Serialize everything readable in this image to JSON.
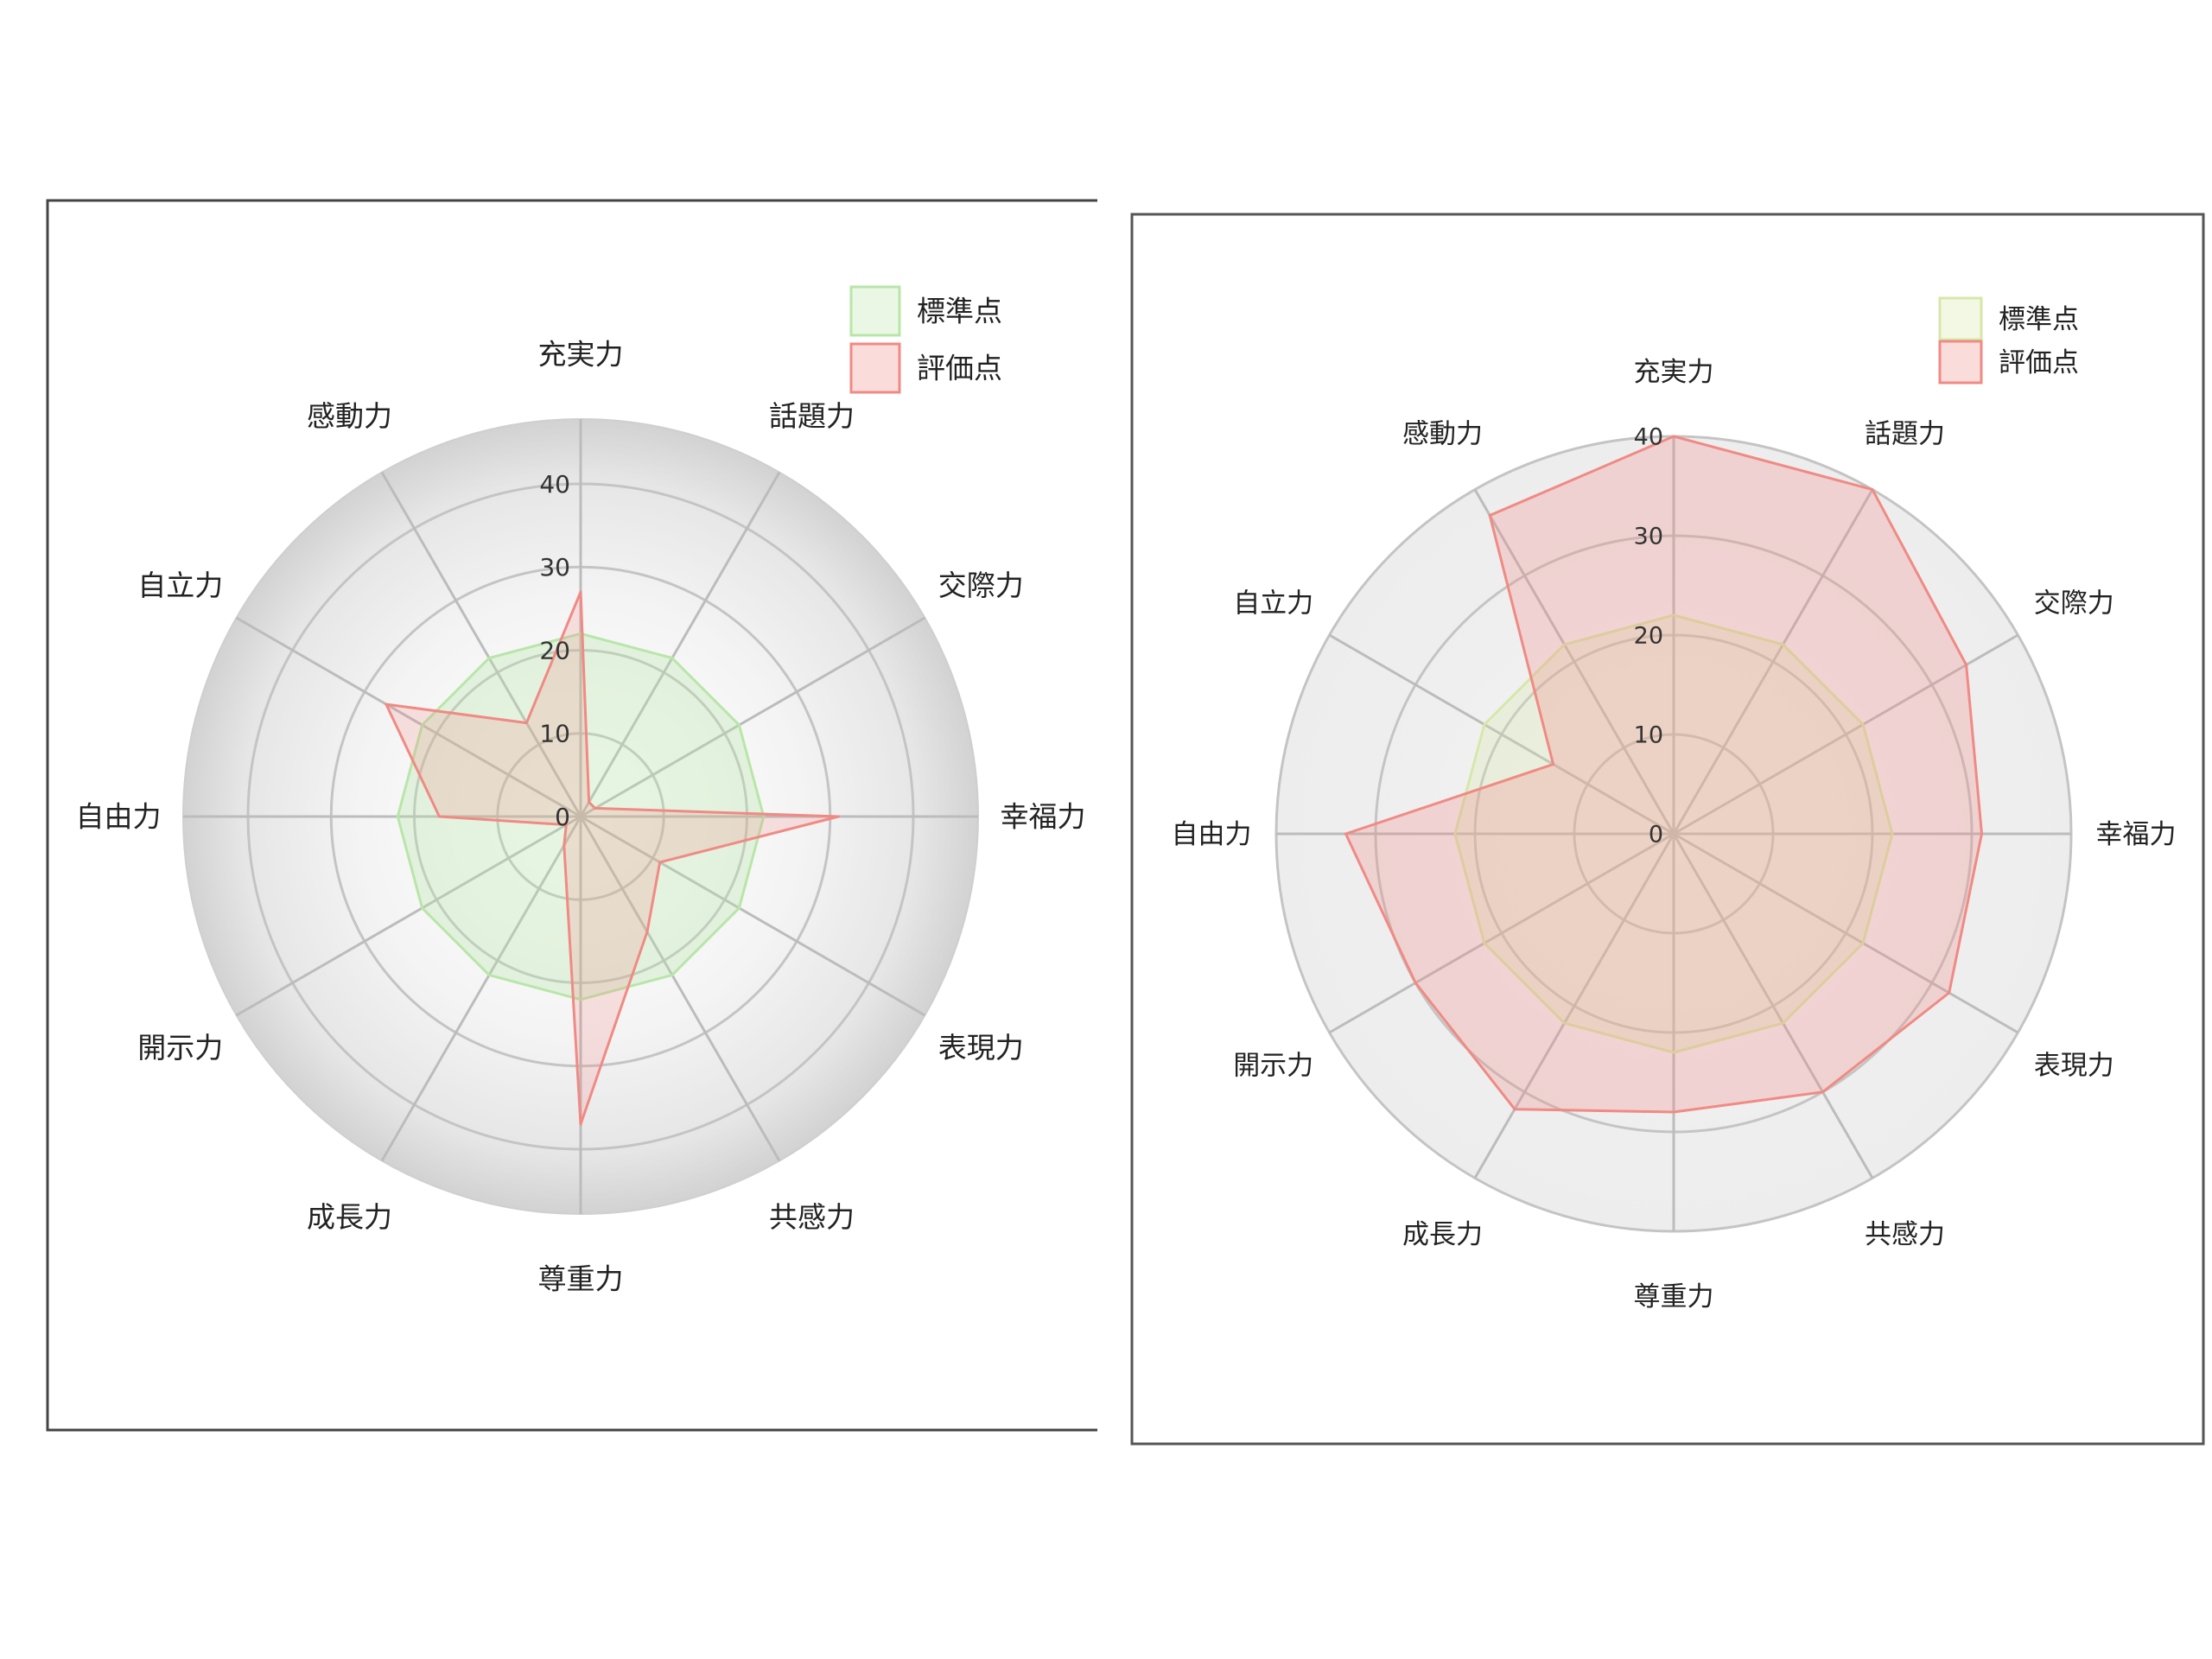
{
  "chart_data": [
    {
      "type": "radar",
      "categories": [
        "充実力",
        "話題力",
        "交際力",
        "幸福力",
        "表現力",
        "共感力",
        "尊重力",
        "成長力",
        "開示力",
        "自由力",
        "自立力",
        "感動力"
      ],
      "rlim": [
        0,
        40
      ],
      "ticks": [
        "0",
        "10",
        "20",
        "30",
        "40"
      ],
      "grid": true,
      "legend_position": "top-right",
      "series": [
        {
          "name": "標準点",
          "values": [
            22,
            22,
            22,
            22,
            22,
            22,
            22,
            22,
            22,
            22,
            22,
            22
          ],
          "color": "#b8e6a8"
        },
        {
          "name": "評価点",
          "values": [
            27,
            2,
            2,
            31,
            11,
            16,
            37,
            4,
            2,
            17,
            27,
            13
          ],
          "color": "#f08a84"
        }
      ]
    },
    {
      "type": "radar",
      "categories": [
        "充実力",
        "話題力",
        "交際力",
        "幸福力",
        "表現力",
        "共感力",
        "尊重力",
        "成長力",
        "開示力",
        "自由力",
        "自立力",
        "感動力"
      ],
      "rlim": [
        0,
        40
      ],
      "ticks": [
        "0",
        "10",
        "20",
        "30",
        "40"
      ],
      "grid": true,
      "legend_position": "top-right",
      "series": [
        {
          "name": "標準点",
          "values": [
            22,
            22,
            22,
            22,
            22,
            22,
            22,
            22,
            22,
            22,
            22,
            22
          ],
          "color": "#d6e8a8"
        },
        {
          "name": "評価点",
          "values": [
            40,
            40,
            34,
            31,
            32,
            30,
            28,
            32,
            30,
            33,
            14,
            37
          ],
          "color": "#f08a84"
        }
      ]
    }
  ]
}
